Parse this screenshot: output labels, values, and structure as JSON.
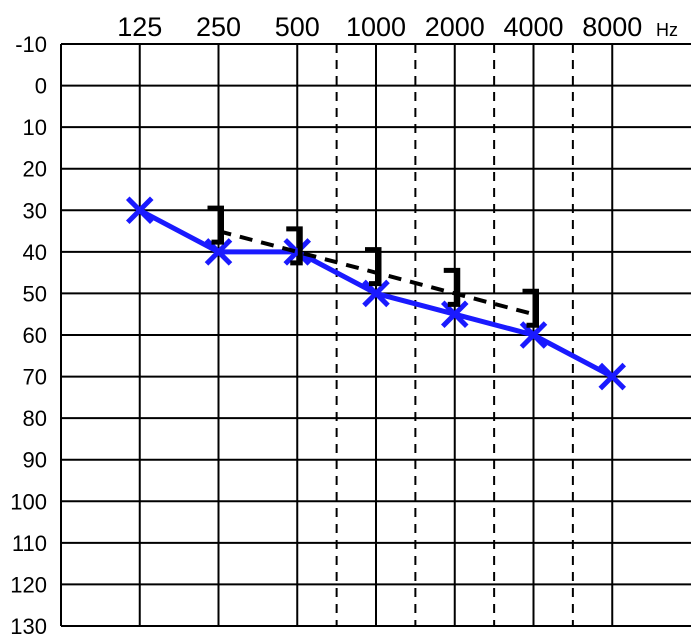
{
  "chart_data": {
    "type": "line",
    "x_unit": "Hz",
    "x_categories": [
      "125",
      "250",
      "500",
      "1000",
      "2000",
      "4000",
      "8000"
    ],
    "interoctave_dashed": [
      "750",
      "1500",
      "3000",
      "6000"
    ],
    "y_ticks": [
      "-10",
      "0",
      "10",
      "20",
      "30",
      "40",
      "50",
      "60",
      "70",
      "80",
      "90",
      "100",
      "110",
      "120",
      "130"
    ],
    "ylim": [
      -10,
      130
    ],
    "y_reversed": true,
    "grid": true,
    "series": [
      {
        "marker": "x",
        "line_style": "solid",
        "color": "#1a1aff",
        "x": [
          "125",
          "250",
          "500",
          "1000",
          "2000",
          "4000",
          "8000"
        ],
        "values": [
          30,
          40,
          40,
          50,
          55,
          60,
          70
        ]
      },
      {
        "marker": "bracket-right",
        "line_style": "dashed",
        "color": "#000000",
        "x": [
          "250",
          "500",
          "1000",
          "2000",
          "4000"
        ],
        "values": [
          35,
          40,
          45,
          50,
          55
        ]
      }
    ]
  }
}
